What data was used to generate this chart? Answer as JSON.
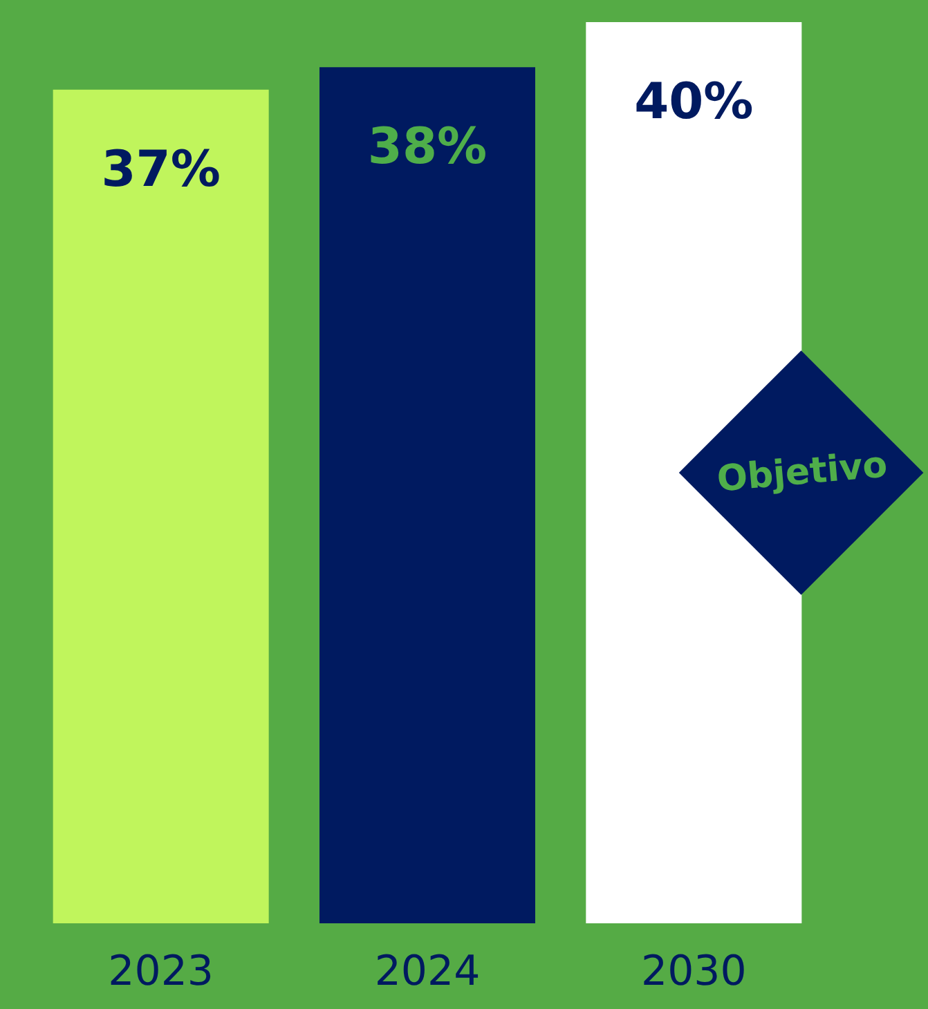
{
  "chart_data": {
    "type": "bar",
    "categories": [
      "2023",
      "2024",
      "2030"
    ],
    "values": [
      37,
      38,
      40
    ],
    "value_labels": [
      "37%",
      "38%",
      "40%"
    ],
    "colors": [
      "#c0f55c",
      "#001a60",
      "#ffffff"
    ],
    "annotations": [
      "Objetivo"
    ]
  }
}
